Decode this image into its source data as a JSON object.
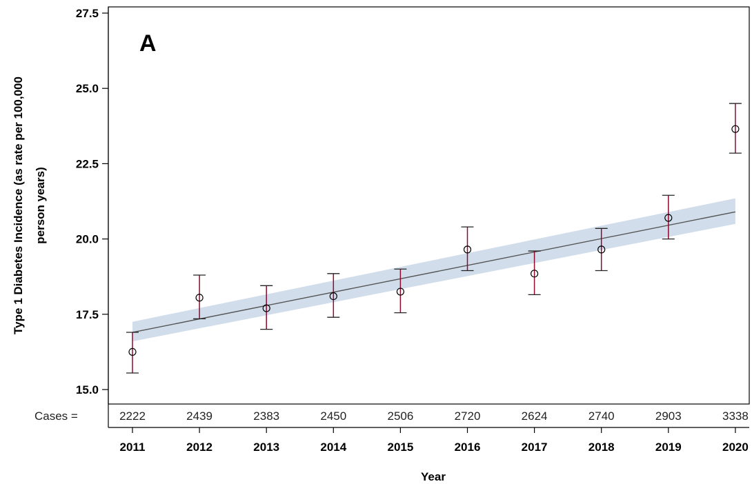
{
  "chart_data": {
    "type": "scatter",
    "panel_label": "A",
    "xlabel": "Year",
    "ylabel_line1": "Type 1 Diabetes Incidence (as rate per 100,000",
    "ylabel_line2": "person years)",
    "ylim": [
      15.0,
      27.5
    ],
    "y_ticks": [
      "15.0",
      "17.5",
      "20.0",
      "22.5",
      "25.0",
      "27.5"
    ],
    "categories": [
      "2011",
      "2012",
      "2013",
      "2014",
      "2015",
      "2016",
      "2017",
      "2018",
      "2019",
      "2020"
    ],
    "values": [
      16.25,
      18.05,
      17.7,
      18.1,
      18.25,
      19.65,
      18.85,
      19.65,
      20.7,
      23.65
    ],
    "ci_lower": [
      15.55,
      17.35,
      17.0,
      17.4,
      17.55,
      18.95,
      18.15,
      18.95,
      20.0,
      22.85
    ],
    "ci_upper": [
      16.9,
      18.8,
      18.45,
      18.85,
      19.0,
      20.4,
      19.6,
      20.35,
      21.45,
      24.5
    ],
    "cases_label": "Cases =",
    "cases": [
      "2222",
      "2439",
      "2383",
      "2450",
      "2506",
      "2720",
      "2624",
      "2740",
      "2903",
      "3338"
    ],
    "trend_line": {
      "x_from": "2011",
      "x_to": "2020",
      "y_from": 16.9,
      "y_to": 20.9
    },
    "trend_band": {
      "lower_from": 16.6,
      "upper_from": 17.25,
      "lower_to": 20.5,
      "upper_to": 21.35
    },
    "colors": {
      "marker": "#000000",
      "errorbar": "#8b0a2e",
      "trend": "#555555",
      "band": "#c9d7e8",
      "axis": "#000000"
    },
    "grid": false
  }
}
